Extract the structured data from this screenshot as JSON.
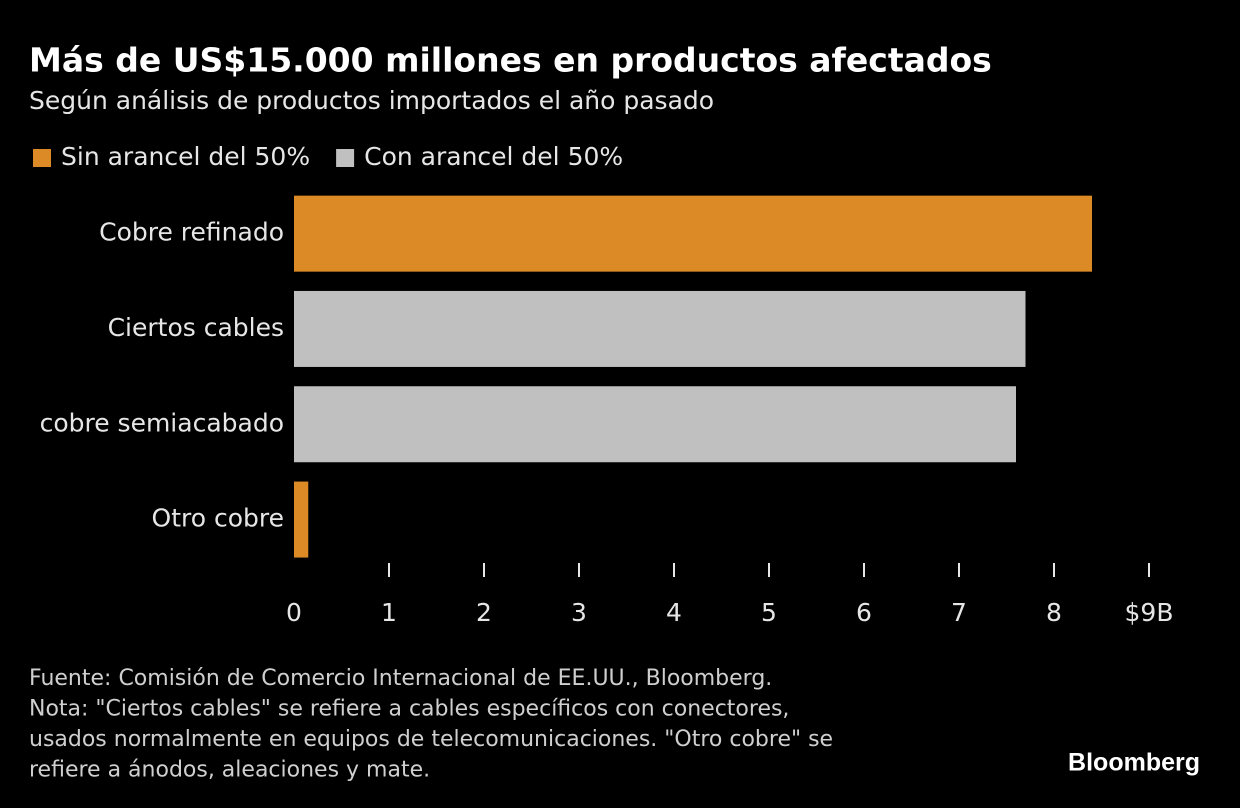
{
  "chart_data": {
    "type": "bar",
    "orientation": "horizontal",
    "title": "Más de US$15.000 millones en productos afectados",
    "subtitle": "Según análisis de productos importados el año pasado",
    "categories": [
      "Cobre refinado",
      "Ciertos cables",
      "cobre semiacabado",
      "Otro cobre"
    ],
    "series": [
      {
        "name": "Sin arancel del 50%",
        "color": "#dc8a26",
        "values": [
          8.4,
          null,
          null,
          0.15
        ]
      },
      {
        "name": "Con arancel del 50%",
        "color": "#c0c0c0",
        "values": [
          null,
          7.7,
          7.6,
          null
        ]
      }
    ],
    "xlim": [
      0,
      9
    ],
    "xticks": [
      0,
      1,
      2,
      3,
      4,
      5,
      6,
      7,
      8,
      {
        "value": 9,
        "label": "$9B"
      }
    ],
    "notes": [
      "Fuente: Comisión de Comercio Internacional de EE.UU., Bloomberg.",
      "Nota: \"Ciertos cables\" se refiere a cables específicos con conectores,",
      "usados normalmente en equipos de telecomunicaciones. \"Otro cobre\" se",
      "refiere a ánodos, aleaciones y mate."
    ],
    "brand": "Bloomberg"
  }
}
